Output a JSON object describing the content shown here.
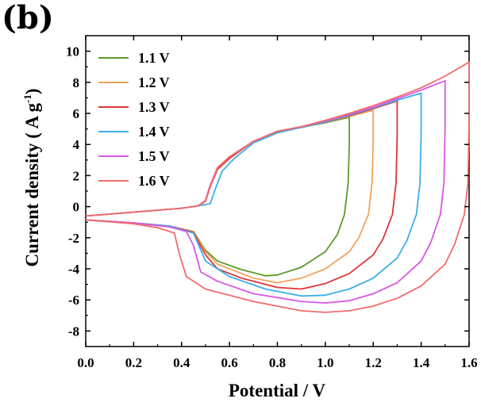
{
  "panel_label": "(b)",
  "chart_data": {
    "type": "line",
    "title": "",
    "xlabel": "Potential / V",
    "ylabel": {
      "main": "Current density ( A g",
      "sup": "-1",
      "close": ")"
    },
    "xlim": [
      0.0,
      1.6
    ],
    "ylim": [
      -9,
      11
    ],
    "xticks": [
      0.0,
      0.2,
      0.4,
      0.6,
      0.8,
      1.0,
      1.2,
      1.4,
      1.6
    ],
    "xtick_labels": [
      "0.0",
      "0.2",
      "0.4",
      "0.6",
      "0.8",
      "1.0",
      "1.2",
      "1.4",
      "1.6"
    ],
    "yticks": [
      -8,
      -6,
      -4,
      -2,
      0,
      2,
      4,
      6,
      8,
      10
    ],
    "ytick_labels": [
      "-8",
      "-6",
      "-4",
      "-2",
      "0",
      "2",
      "4",
      "6",
      "8",
      "10"
    ],
    "grid": false,
    "legend_position": "top-left",
    "series": [
      {
        "name": "1.1 V",
        "color": "#5a9a2a",
        "anodic": [
          [
            0.0,
            -0.6
          ],
          [
            0.2,
            -0.35
          ],
          [
            0.4,
            -0.1
          ],
          [
            0.47,
            0.05
          ],
          [
            0.5,
            0.4
          ],
          [
            0.52,
            1.4
          ],
          [
            0.55,
            2.5
          ],
          [
            0.6,
            3.2
          ],
          [
            0.7,
            4.2
          ],
          [
            0.8,
            4.85
          ],
          [
            0.9,
            5.1
          ],
          [
            1.0,
            5.4
          ],
          [
            1.1,
            5.75
          ]
        ],
        "cathodic": [
          [
            1.1,
            5.75
          ],
          [
            1.1,
            4.0
          ],
          [
            1.095,
            1.5
          ],
          [
            1.08,
            -0.5
          ],
          [
            1.05,
            -1.8
          ],
          [
            1.0,
            -2.9
          ],
          [
            0.9,
            -3.9
          ],
          [
            0.8,
            -4.4
          ],
          [
            0.75,
            -4.45
          ],
          [
            0.65,
            -4.05
          ],
          [
            0.55,
            -3.5
          ],
          [
            0.5,
            -2.8
          ],
          [
            0.45,
            -1.6
          ],
          [
            0.35,
            -1.25
          ],
          [
            0.2,
            -1.05
          ],
          [
            0.0,
            -0.85
          ]
        ]
      },
      {
        "name": "1.2 V",
        "color": "#f2a35a",
        "anodic": [
          [
            0.0,
            -0.6
          ],
          [
            0.2,
            -0.35
          ],
          [
            0.4,
            -0.1
          ],
          [
            0.47,
            0.05
          ],
          [
            0.5,
            0.4
          ],
          [
            0.52,
            1.4
          ],
          [
            0.55,
            2.5
          ],
          [
            0.6,
            3.2
          ],
          [
            0.7,
            4.2
          ],
          [
            0.8,
            4.85
          ],
          [
            0.9,
            5.1
          ],
          [
            1.0,
            5.45
          ],
          [
            1.1,
            5.8
          ],
          [
            1.2,
            6.2
          ]
        ],
        "cathodic": [
          [
            1.2,
            6.2
          ],
          [
            1.2,
            4.2
          ],
          [
            1.195,
            1.5
          ],
          [
            1.18,
            -0.5
          ],
          [
            1.14,
            -2.0
          ],
          [
            1.1,
            -2.9
          ],
          [
            1.0,
            -4.0
          ],
          [
            0.9,
            -4.6
          ],
          [
            0.8,
            -4.9
          ],
          [
            0.7,
            -4.6
          ],
          [
            0.55,
            -3.7
          ],
          [
            0.5,
            -2.9
          ],
          [
            0.45,
            -1.6
          ],
          [
            0.35,
            -1.25
          ],
          [
            0.2,
            -1.05
          ],
          [
            0.0,
            -0.85
          ]
        ]
      },
      {
        "name": "1.3 V",
        "color": "#e03535",
        "anodic": [
          [
            0.0,
            -0.6
          ],
          [
            0.2,
            -0.35
          ],
          [
            0.4,
            -0.1
          ],
          [
            0.47,
            0.05
          ],
          [
            0.5,
            0.35
          ],
          [
            0.52,
            1.3
          ],
          [
            0.55,
            2.4
          ],
          [
            0.6,
            3.1
          ],
          [
            0.7,
            4.2
          ],
          [
            0.8,
            4.8
          ],
          [
            0.9,
            5.1
          ],
          [
            1.0,
            5.45
          ],
          [
            1.1,
            5.85
          ],
          [
            1.2,
            6.3
          ],
          [
            1.3,
            6.8
          ]
        ],
        "cathodic": [
          [
            1.3,
            6.8
          ],
          [
            1.3,
            4.5
          ],
          [
            1.295,
            1.5
          ],
          [
            1.28,
            -0.5
          ],
          [
            1.24,
            -2.1
          ],
          [
            1.2,
            -3.1
          ],
          [
            1.1,
            -4.3
          ],
          [
            1.0,
            -4.95
          ],
          [
            0.9,
            -5.3
          ],
          [
            0.8,
            -5.2
          ],
          [
            0.65,
            -4.6
          ],
          [
            0.55,
            -4.0
          ],
          [
            0.5,
            -3.1
          ],
          [
            0.45,
            -1.65
          ],
          [
            0.35,
            -1.25
          ],
          [
            0.2,
            -1.05
          ],
          [
            0.0,
            -0.85
          ]
        ]
      },
      {
        "name": "1.4 V",
        "color": "#3aaee8",
        "anodic": [
          [
            0.0,
            -0.6
          ],
          [
            0.2,
            -0.35
          ],
          [
            0.4,
            -0.1
          ],
          [
            0.47,
            0.05
          ],
          [
            0.52,
            0.2
          ],
          [
            0.54,
            1.1
          ],
          [
            0.57,
            2.3
          ],
          [
            0.62,
            3.1
          ],
          [
            0.7,
            4.1
          ],
          [
            0.8,
            4.75
          ],
          [
            0.9,
            5.1
          ],
          [
            1.0,
            5.45
          ],
          [
            1.1,
            5.9
          ],
          [
            1.2,
            6.35
          ],
          [
            1.3,
            6.85
          ],
          [
            1.4,
            7.3
          ]
        ],
        "cathodic": [
          [
            1.4,
            7.3
          ],
          [
            1.4,
            4.8
          ],
          [
            1.395,
            1.5
          ],
          [
            1.38,
            -0.5
          ],
          [
            1.34,
            -2.2
          ],
          [
            1.3,
            -3.3
          ],
          [
            1.2,
            -4.6
          ],
          [
            1.1,
            -5.3
          ],
          [
            1.0,
            -5.7
          ],
          [
            0.9,
            -5.75
          ],
          [
            0.75,
            -5.3
          ],
          [
            0.6,
            -4.5
          ],
          [
            0.5,
            -3.5
          ],
          [
            0.45,
            -1.7
          ],
          [
            0.35,
            -1.25
          ],
          [
            0.2,
            -1.05
          ],
          [
            0.0,
            -0.85
          ]
        ]
      },
      {
        "name": "1.5 V",
        "color": "#d957e6",
        "anodic": [
          [
            0.0,
            -0.6
          ],
          [
            0.2,
            -0.35
          ],
          [
            0.4,
            -0.1
          ],
          [
            0.47,
            0.05
          ],
          [
            0.5,
            0.4
          ],
          [
            0.52,
            1.4
          ],
          [
            0.55,
            2.5
          ],
          [
            0.6,
            3.2
          ],
          [
            0.7,
            4.2
          ],
          [
            0.8,
            4.85
          ],
          [
            0.9,
            5.15
          ],
          [
            1.0,
            5.5
          ],
          [
            1.1,
            5.95
          ],
          [
            1.2,
            6.4
          ],
          [
            1.3,
            6.95
          ],
          [
            1.4,
            7.5
          ],
          [
            1.5,
            8.1
          ]
        ],
        "cathodic": [
          [
            1.5,
            8.1
          ],
          [
            1.5,
            5.2
          ],
          [
            1.495,
            1.5
          ],
          [
            1.48,
            -0.5
          ],
          [
            1.44,
            -2.3
          ],
          [
            1.4,
            -3.5
          ],
          [
            1.3,
            -4.9
          ],
          [
            1.2,
            -5.6
          ],
          [
            1.1,
            -6.05
          ],
          [
            1.0,
            -6.2
          ],
          [
            0.9,
            -6.1
          ],
          [
            0.7,
            -5.6
          ],
          [
            0.55,
            -4.8
          ],
          [
            0.48,
            -4.2
          ],
          [
            0.45,
            -2.5
          ],
          [
            0.42,
            -1.6
          ],
          [
            0.35,
            -1.3
          ],
          [
            0.2,
            -1.05
          ],
          [
            0.0,
            -0.85
          ]
        ]
      },
      {
        "name": "1.6 V",
        "color": "#f26b6b",
        "anodic": [
          [
            0.0,
            -0.6
          ],
          [
            0.2,
            -0.35
          ],
          [
            0.4,
            -0.1
          ],
          [
            0.47,
            0.05
          ],
          [
            0.5,
            0.35
          ],
          [
            0.52,
            1.3
          ],
          [
            0.55,
            2.5
          ],
          [
            0.6,
            3.2
          ],
          [
            0.7,
            4.2
          ],
          [
            0.8,
            4.85
          ],
          [
            0.9,
            5.15
          ],
          [
            1.0,
            5.55
          ],
          [
            1.1,
            6.0
          ],
          [
            1.2,
            6.5
          ],
          [
            1.3,
            7.05
          ],
          [
            1.4,
            7.65
          ],
          [
            1.5,
            8.4
          ],
          [
            1.6,
            9.3
          ]
        ],
        "cathodic": [
          [
            1.6,
            9.3
          ],
          [
            1.6,
            5.5
          ],
          [
            1.595,
            1.5
          ],
          [
            1.58,
            -0.5
          ],
          [
            1.54,
            -2.4
          ],
          [
            1.5,
            -3.7
          ],
          [
            1.4,
            -5.1
          ],
          [
            1.3,
            -5.9
          ],
          [
            1.2,
            -6.4
          ],
          [
            1.1,
            -6.7
          ],
          [
            1.0,
            -6.8
          ],
          [
            0.9,
            -6.7
          ],
          [
            0.7,
            -6.1
          ],
          [
            0.5,
            -5.3
          ],
          [
            0.42,
            -4.5
          ],
          [
            0.39,
            -3.0
          ],
          [
            0.37,
            -1.7
          ],
          [
            0.3,
            -1.35
          ],
          [
            0.2,
            -1.1
          ],
          [
            0.0,
            -0.85
          ]
        ]
      }
    ]
  }
}
